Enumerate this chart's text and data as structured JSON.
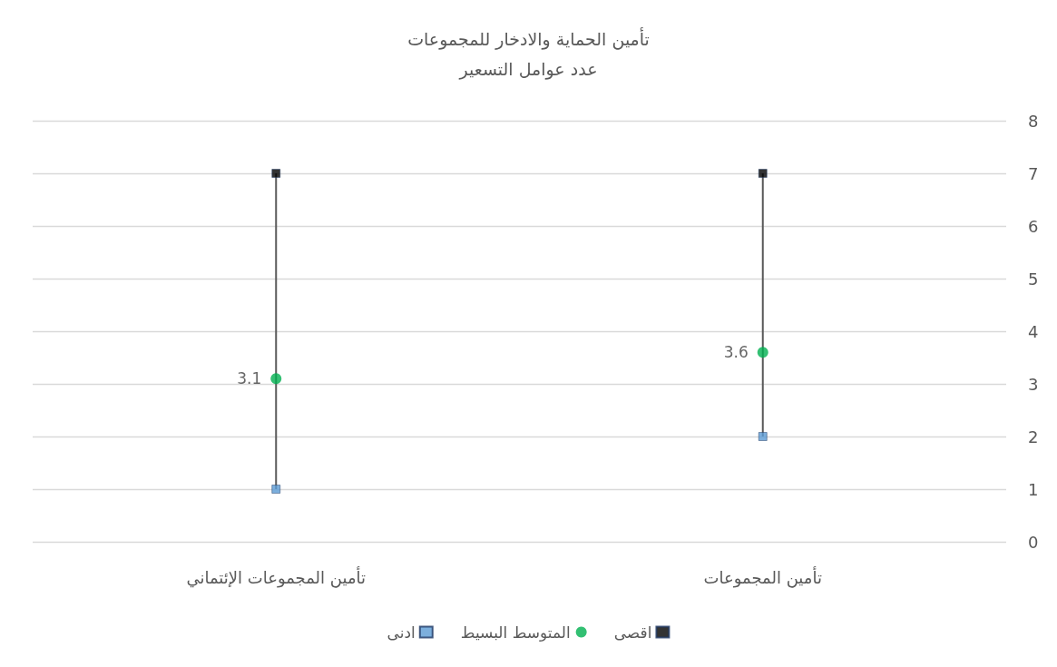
{
  "chart_data": {
    "type": "scatter",
    "title": "تأمين الحماية والادخار للمجموعات",
    "subtitle": "عدد عوامل التسعير",
    "categories": [
      "تأمين المجموعات الإئتماني",
      "تأمين المجموعات"
    ],
    "series": [
      {
        "type": "bar",
        "color": "#595959",
        "base": [
          1,
          2
        ],
        "values": [
          6,
          5
        ]
      },
      {
        "name": "اقصى",
        "color": "#000000",
        "marker": "square",
        "values": [
          7,
          7
        ]
      },
      {
        "name": "المتوسط البسيط",
        "color": "#00b050",
        "marker": "circle",
        "values": [
          3.1,
          3.6
        ],
        "value_labels": [
          "3.1",
          "3.6"
        ]
      },
      {
        "name": "ادنى",
        "color": "#5b9bd5",
        "marker": "square",
        "values": [
          1,
          2
        ]
      }
    ],
    "ylim": [
      0,
      8
    ],
    "yticks": [
      0,
      1,
      2,
      3,
      4,
      5,
      6,
      7,
      8
    ],
    "grid": "y",
    "legend": "bottom"
  }
}
